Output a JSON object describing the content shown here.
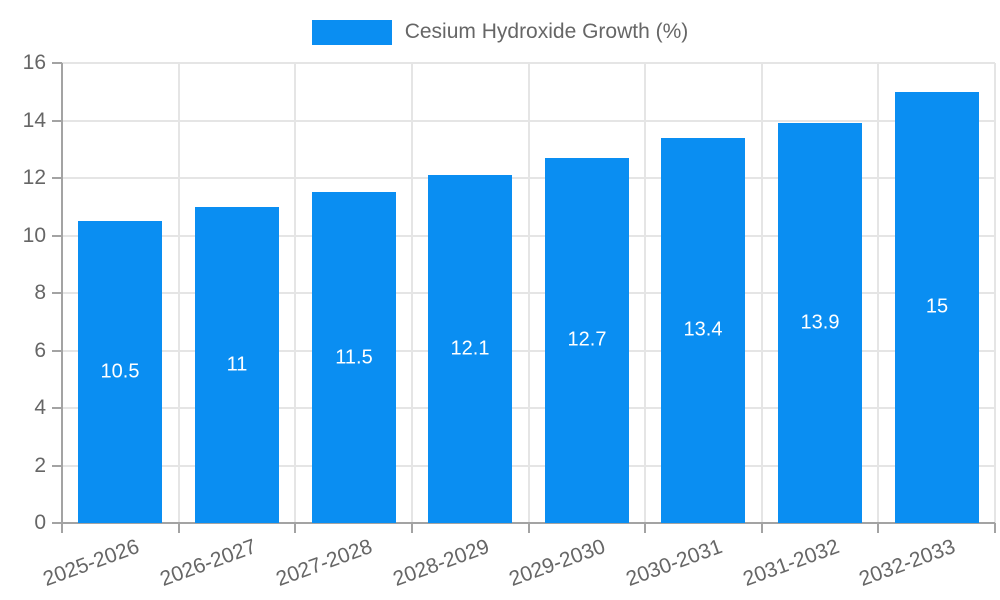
{
  "chart_data": {
    "type": "bar",
    "title": "",
    "categories": [
      "2025-2026",
      "2026-2027",
      "2027-2028",
      "2028-2029",
      "2029-2030",
      "2030-2031",
      "2031-2032",
      "2032-2033"
    ],
    "series": [
      {
        "name": "Cesium Hydroxide Growth (%)",
        "values": [
          10.5,
          11,
          11.5,
          12.1,
          12.7,
          13.4,
          13.9,
          15
        ]
      }
    ],
    "value_labels": [
      "10.5",
      "11",
      "11.5",
      "12.1",
      "12.7",
      "13.4",
      "13.9",
      "15"
    ],
    "xlabel": "",
    "ylabel": "",
    "ylim": [
      0,
      16
    ],
    "y_ticks": [
      0,
      2,
      4,
      6,
      8,
      10,
      12,
      14,
      16
    ],
    "grid": true,
    "legend_position": "top",
    "colors": {
      "bar": "#0a8ef2",
      "grid": "#e5e5e5",
      "axis": "#a3a3a3",
      "tick_label": "#666666",
      "value_label": "#ffffff",
      "background": "#ffffff"
    }
  }
}
